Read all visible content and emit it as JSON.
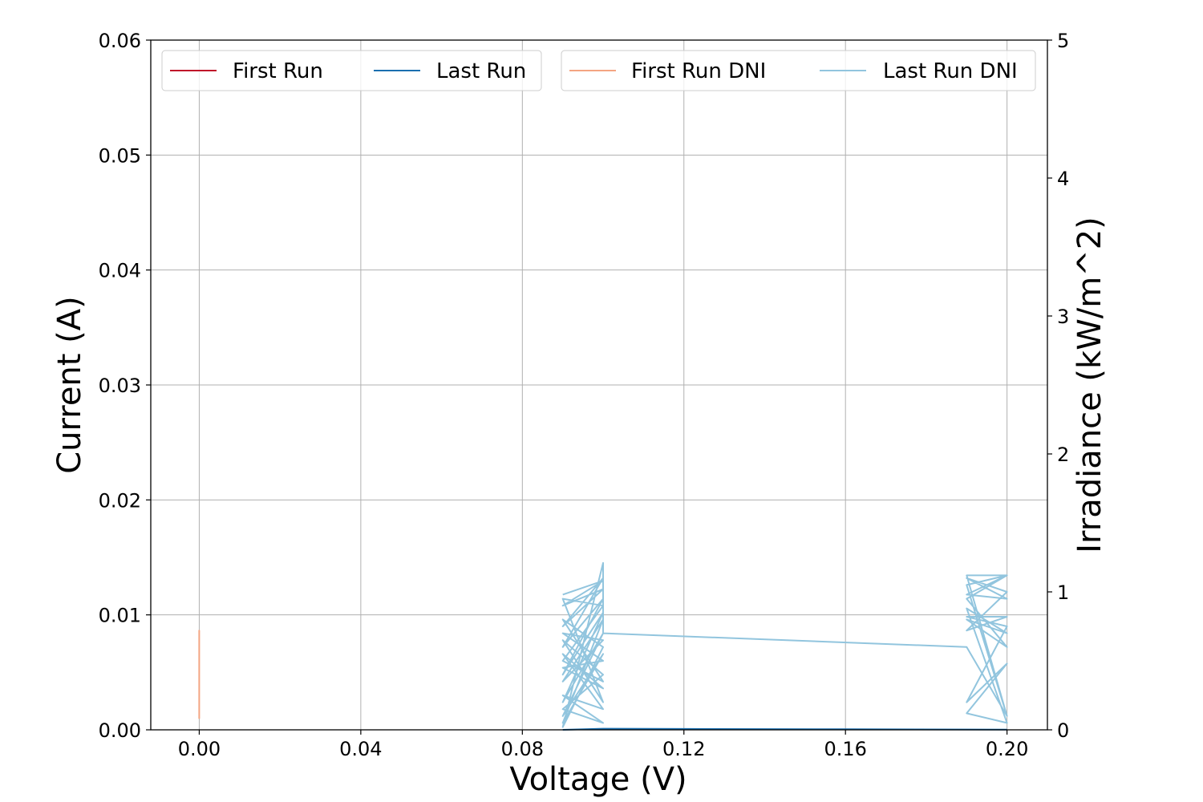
{
  "chart_data": {
    "type": "line",
    "xlabel": "Voltage (V)",
    "ylabel": "Current (A)",
    "y2label": "Irradiance (kW/m^2)",
    "xlim": [
      -0.012,
      0.21
    ],
    "ylim": [
      0,
      0.06
    ],
    "y2lim": [
      0,
      5
    ],
    "x_ticks": [
      "0.00",
      "0.04",
      "0.08",
      "0.12",
      "0.16",
      "0.20"
    ],
    "x_tick_values": [
      0,
      0.04,
      0.08,
      0.12,
      0.16,
      0.2
    ],
    "y_ticks": [
      "0.00",
      "0.01",
      "0.02",
      "0.03",
      "0.04",
      "0.05",
      "0.06"
    ],
    "y_tick_values": [
      0,
      0.01,
      0.02,
      0.03,
      0.04,
      0.05,
      0.06
    ],
    "y2_ticks": [
      "0",
      "1",
      "2",
      "3",
      "4",
      "5"
    ],
    "y2_tick_values": [
      0,
      1,
      2,
      3,
      4,
      5
    ],
    "grid": true,
    "legend_left": {
      "placement": "top-left",
      "entries": [
        {
          "name": "First Run",
          "color": "#c0142a"
        },
        {
          "name": "Last Run",
          "color": "#1a6fb0"
        }
      ]
    },
    "legend_right": {
      "placement": "top-right",
      "entries": [
        {
          "name": "First Run DNI",
          "color": "#f4a582"
        },
        {
          "name": "Last Run DNI",
          "color": "#92c5de"
        }
      ]
    },
    "series": [
      {
        "name": "First Run",
        "axis": "left",
        "color": "#c0142a",
        "x": [
          0,
          0
        ],
        "y": [
          0,
          0
        ]
      },
      {
        "name": "Last Run",
        "axis": "left",
        "color": "#1a6fb0",
        "x": [
          0.09,
          0.1,
          0.12,
          0.16,
          0.19,
          0.2
        ],
        "y": [
          0,
          0.0001,
          8e-05,
          5e-05,
          3e-05,
          2e-05
        ]
      },
      {
        "name": "First Run DNI",
        "axis": "right",
        "color": "#f4a582",
        "x": [
          0,
          0,
          0,
          0,
          0,
          0,
          0,
          0
        ],
        "y": [
          0.08,
          0.5,
          0.72,
          0.3,
          0.45,
          0.65,
          0.2,
          0.1
        ]
      },
      {
        "name": "Last Run DNI",
        "axis": "right",
        "color": "#92c5de",
        "x": [
          0.09,
          0.1,
          0.09,
          0.1,
          0.09,
          0.1,
          0.09,
          0.1,
          0.09,
          0.1,
          0.09,
          0.1,
          0.09,
          0.1,
          0.09,
          0.1,
          0.09,
          0.1,
          0.09,
          0.1,
          0.09,
          0.1,
          0.09,
          0.1,
          0.09,
          0.1,
          0.09,
          0.1,
          0.09,
          0.1,
          0.09,
          0.1,
          0.09,
          0.1,
          0.09,
          0.1,
          0.09,
          0.1,
          0.1,
          0.19,
          0.2,
          0.19,
          0.2,
          0.19,
          0.2,
          0.19,
          0.2,
          0.19,
          0.2,
          0.19,
          0.2,
          0.19,
          0.2,
          0.19,
          0.2,
          0.19,
          0.2,
          0.19,
          0.2,
          0.19,
          0.2,
          0.19,
          0.2
        ],
        "y": [
          0.98,
          1.08,
          0.9,
          1.02,
          0.75,
          1.1,
          0.6,
          0.95,
          0.4,
          0.85,
          0.2,
          0.7,
          0.1,
          0.55,
          0.05,
          0.8,
          0.35,
          0.65,
          0.7,
          0.5,
          0.45,
          0.3,
          0.55,
          0.15,
          0.25,
          0.05,
          0.15,
          0.4,
          0.65,
          0.2,
          0.95,
          0.9,
          0.5,
          0.35,
          0.8,
          0.6,
          0.02,
          1.21,
          0.7,
          0.6,
          0.1,
          1.12,
          1.12,
          0.98,
          0.95,
          1.1,
          1.0,
          0.72,
          0.82,
          0.82,
          0.75,
          0.2,
          0.48,
          0.12,
          0.05,
          0.88,
          0.7,
          0.8,
          0.6,
          0.95,
          1.12,
          1.05,
          0.1
        ]
      }
    ]
  }
}
